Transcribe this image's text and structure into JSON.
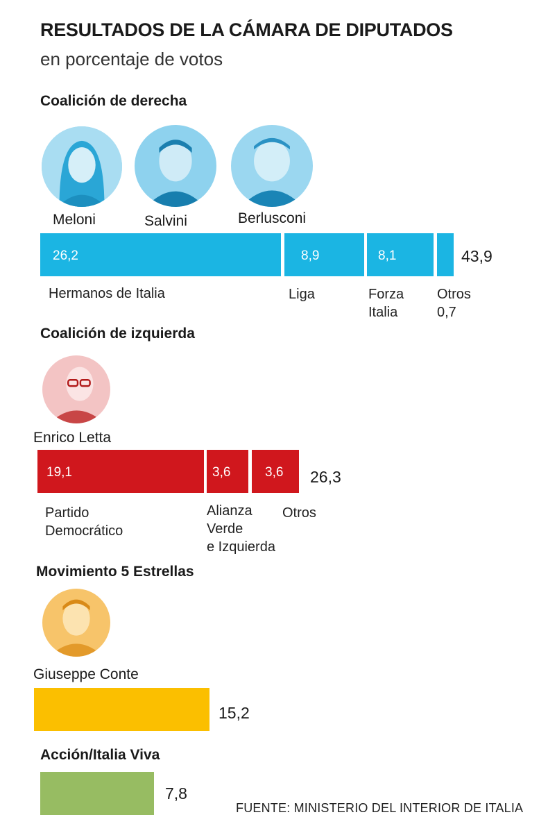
{
  "title": "RESULTADOS DE LA CÁMARA DE DIPUTADOS",
  "subtitle": "en porcentaje de votos",
  "source": "FUENTE: MINISTERIO DEL INTERIOR DE ITALIA",
  "colors": {
    "derecha": "#1BB5E3",
    "izquierda": "#D0171D",
    "m5s": "#FBBF00",
    "accion": "#97BC62"
  },
  "sections": {
    "derecha": {
      "title": "Coalición de derecha",
      "leaders": [
        "Meloni",
        "Salvini",
        "Berlusconi"
      ],
      "segments": [
        {
          "value_label": "26,2",
          "label": "Hermanos de Italia"
        },
        {
          "value_label": "8,9",
          "label": "Liga"
        },
        {
          "value_label": "8,1",
          "label": "Forza\nItalia"
        },
        {
          "value_label": "",
          "label": "Otros\n0,7"
        }
      ],
      "total": "43,9"
    },
    "izquierda": {
      "title": "Coalición de izquierda",
      "leaders": [
        "Enrico Letta"
      ],
      "segments": [
        {
          "value_label": "19,1",
          "label": "Partido\nDemocrático"
        },
        {
          "value_label": "3,6",
          "label": "Alianza\nVerde\ne Izquierda"
        },
        {
          "value_label": "3,6",
          "label": "Otros"
        }
      ],
      "total": "26,3"
    },
    "m5s": {
      "title": "Movimiento 5 Estrellas",
      "leaders": [
        "Giuseppe Conte"
      ],
      "total": "15,2"
    },
    "accion": {
      "title": "Acción/Italia Viva",
      "total": "7,8"
    }
  },
  "chart_data": {
    "type": "bar",
    "title": "RESULTADOS DE LA CÁMARA DE DIPUTADOS",
    "subtitle": "en porcentaje de votos",
    "orientation": "horizontal-stacked",
    "groups": [
      {
        "name": "Coalición de derecha",
        "total": 43.9,
        "parts": [
          {
            "name": "Hermanos de Italia",
            "value": 26.2
          },
          {
            "name": "Liga",
            "value": 8.9
          },
          {
            "name": "Forza Italia",
            "value": 8.1
          },
          {
            "name": "Otros",
            "value": 0.7
          }
        ]
      },
      {
        "name": "Coalición de izquierda",
        "total": 26.3,
        "parts": [
          {
            "name": "Partido Democrático",
            "value": 19.1
          },
          {
            "name": "Alianza Verde e Izquierda",
            "value": 3.6
          },
          {
            "name": "Otros",
            "value": 3.6
          }
        ]
      },
      {
        "name": "Movimiento 5 Estrellas",
        "total": 15.2,
        "parts": [
          {
            "name": "Movimiento 5 Estrellas",
            "value": 15.2
          }
        ]
      },
      {
        "name": "Acción/Italia Viva",
        "total": 7.8,
        "parts": [
          {
            "name": "Acción/Italia Viva",
            "value": 7.8
          }
        ]
      }
    ]
  }
}
